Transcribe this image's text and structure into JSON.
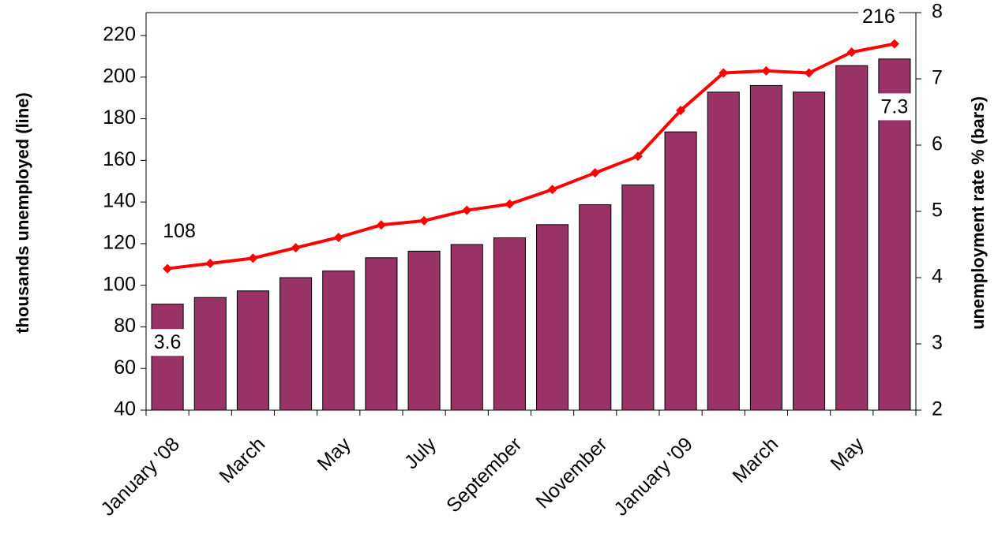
{
  "chart_data": {
    "type": "bar",
    "categories": [
      "January '08",
      null,
      "March",
      null,
      "May",
      null,
      "July",
      null,
      "September",
      null,
      "November",
      null,
      "January '09",
      null,
      "March",
      null,
      "May",
      null
    ],
    "ylabel": "thousands unemployed (line)",
    "y2label": "unemployment rate % (bars)",
    "ylim": [
      40,
      231
    ],
    "yticks": [
      40,
      60,
      80,
      100,
      120,
      140,
      160,
      180,
      200,
      220
    ],
    "y2lim": [
      2,
      8
    ],
    "y2ticks": [
      2,
      3,
      4,
      5,
      6,
      7,
      8
    ],
    "series": [
      {
        "type": "bar",
        "axis": "y2",
        "color": "#993366",
        "values": [
          3.6,
          3.7,
          3.8,
          4.0,
          4.1,
          4.3,
          4.4,
          4.5,
          4.6,
          4.8,
          5.1,
          5.4,
          6.2,
          6.8,
          6.9,
          6.8,
          7.2,
          7.3
        ]
      },
      {
        "type": "line",
        "color": "#ff0000",
        "values": [
          108,
          110.5,
          113,
          118,
          123,
          129,
          131,
          136,
          139,
          146,
          154,
          162,
          184,
          202,
          203,
          202,
          212,
          216
        ]
      }
    ]
  }
}
